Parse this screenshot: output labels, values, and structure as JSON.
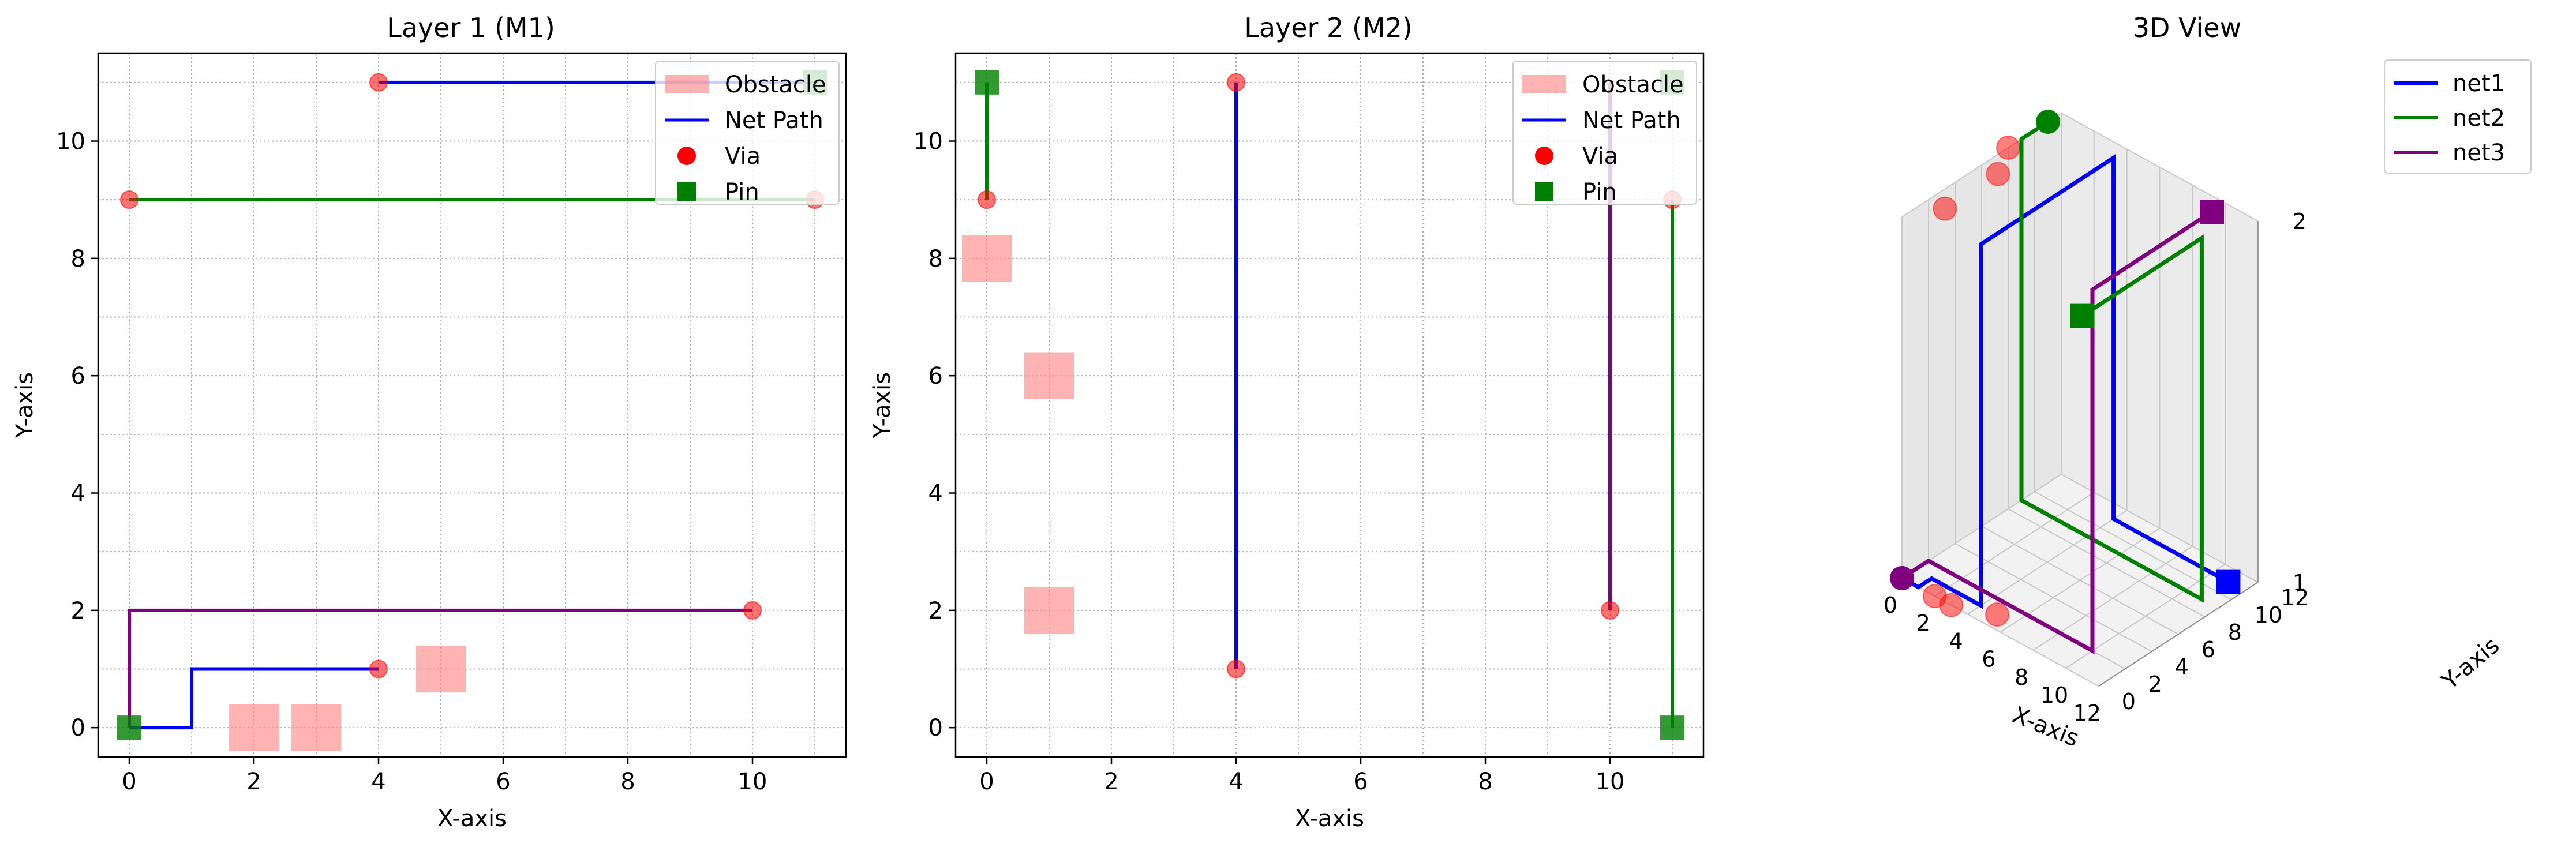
{
  "figure": {
    "background": "#ffffff"
  },
  "colors": {
    "net1": "#0000ff",
    "net2": "#008000",
    "net3": "#800080",
    "via": "#ff0000",
    "pin": "#008000",
    "obstacle": "#ff8080",
    "grid": "#b0b0b0",
    "pane": "#f2f2f2"
  },
  "chart_data": [
    {
      "type": "scatter",
      "title": "Layer 1 (M1)",
      "xlabel": "X-axis",
      "ylabel": "Y-axis",
      "xlim": [
        -0.5,
        11.5
      ],
      "ylim": [
        -0.5,
        11.5
      ],
      "xticks": [
        0,
        2,
        4,
        6,
        8,
        10
      ],
      "yticks": [
        0,
        2,
        4,
        6,
        8,
        10
      ],
      "grid": true,
      "legend": {
        "placement": "top-right",
        "entries": [
          "Obstacle",
          "Net Path",
          "Via",
          "Pin"
        ]
      },
      "obstacles": [
        {
          "x": 2,
          "y": 0
        },
        {
          "x": 3,
          "y": 0
        },
        {
          "x": 5,
          "y": 1
        }
      ],
      "paths": [
        {
          "net": "net1",
          "points": [
            [
              0,
              0
            ],
            [
              1,
              0
            ],
            [
              1,
              1
            ],
            [
              4,
              1
            ]
          ]
        },
        {
          "net": "net1",
          "points": [
            [
              4,
              11
            ],
            [
              11,
              11
            ]
          ]
        },
        {
          "net": "net2",
          "points": [
            [
              0,
              9
            ],
            [
              11,
              9
            ]
          ]
        },
        {
          "net": "net3",
          "points": [
            [
              0,
              0
            ],
            [
              0,
              2
            ],
            [
              10,
              2
            ]
          ]
        }
      ],
      "vias": [
        [
          4,
          1
        ],
        [
          4,
          11
        ],
        [
          0,
          9
        ],
        [
          11,
          9
        ],
        [
          10,
          2
        ]
      ],
      "pins": [
        [
          0,
          0
        ],
        [
          11,
          11
        ]
      ]
    },
    {
      "type": "scatter",
      "title": "Layer 2 (M2)",
      "xlabel": "X-axis",
      "ylabel": "Y-axis",
      "xlim": [
        -0.5,
        11.5
      ],
      "ylim": [
        -0.5,
        11.5
      ],
      "xticks": [
        0,
        2,
        4,
        6,
        8,
        10
      ],
      "yticks": [
        0,
        2,
        4,
        6,
        8,
        10
      ],
      "grid": true,
      "legend": {
        "placement": "top-right",
        "entries": [
          "Obstacle",
          "Net Path",
          "Via",
          "Pin"
        ]
      },
      "obstacles": [
        {
          "x": 0,
          "y": 8
        },
        {
          "x": 1,
          "y": 6
        },
        {
          "x": 1,
          "y": 2
        }
      ],
      "paths": [
        {
          "net": "net1",
          "points": [
            [
              4,
              1
            ],
            [
              4,
              11
            ]
          ]
        },
        {
          "net": "net2",
          "points": [
            [
              0,
              11
            ],
            [
              0,
              9
            ]
          ]
        },
        {
          "net": "net2",
          "points": [
            [
              11,
              9
            ],
            [
              11,
              0
            ]
          ]
        },
        {
          "net": "net3",
          "points": [
            [
              10,
              2
            ],
            [
              10,
              11
            ]
          ]
        }
      ],
      "vias": [
        [
          0,
          9
        ],
        [
          4,
          11
        ],
        [
          4,
          1
        ],
        [
          10,
          2
        ],
        [
          11,
          9
        ]
      ],
      "pins": [
        [
          0,
          11
        ],
        [
          11,
          0
        ],
        [
          11,
          11
        ]
      ]
    },
    {
      "type": "line",
      "projection": "3d",
      "title": "3D View",
      "xlabel": "X-axis",
      "ylabel": "Y-axis",
      "zlabel": "",
      "xlim": [
        0,
        12
      ],
      "ylim": [
        0,
        12
      ],
      "zlim": [
        1,
        2
      ],
      "xticks": [
        0,
        2,
        4,
        6,
        8,
        10,
        12
      ],
      "yticks": [
        0,
        2,
        4,
        6,
        8,
        10,
        12
      ],
      "zticks": [
        1,
        2
      ],
      "legend": {
        "placement": "top-right",
        "entries": [
          "net1",
          "net2",
          "net3"
        ]
      },
      "series": [
        {
          "name": "net1",
          "points": [
            [
              0,
              0,
              1
            ],
            [
              1,
              0,
              1
            ],
            [
              1,
              1,
              1
            ],
            [
              4,
              1,
              1
            ],
            [
              4,
              1,
              2
            ],
            [
              4,
              11,
              2
            ],
            [
              4,
              11,
              1
            ],
            [
              11,
              11,
              1
            ]
          ],
          "start": [
            0,
            0,
            1
          ],
          "end": [
            11,
            11,
            1
          ]
        },
        {
          "name": "net2",
          "points": [
            [
              0,
              11,
              2
            ],
            [
              0,
              9,
              2
            ],
            [
              0,
              9,
              1
            ],
            [
              11,
              9,
              1
            ],
            [
              11,
              9,
              2
            ],
            [
              11,
              0,
              2
            ]
          ],
          "start": [
            0,
            11,
            2
          ],
          "end": [
            11,
            0,
            2
          ]
        },
        {
          "name": "net3",
          "points": [
            [
              0,
              0,
              1
            ],
            [
              0,
              2,
              1
            ],
            [
              10,
              2,
              1
            ],
            [
              10,
              2,
              2
            ],
            [
              10,
              11,
              2
            ]
          ],
          "start": [
            0,
            0,
            1
          ],
          "end": [
            10,
            11,
            2
          ]
        }
      ],
      "obstacles": [
        [
          2,
          0,
          1
        ],
        [
          3,
          0,
          1
        ],
        [
          5,
          1,
          1
        ],
        [
          0,
          8,
          2
        ],
        [
          1,
          6,
          2
        ],
        [
          1,
          2,
          2
        ]
      ]
    }
  ]
}
